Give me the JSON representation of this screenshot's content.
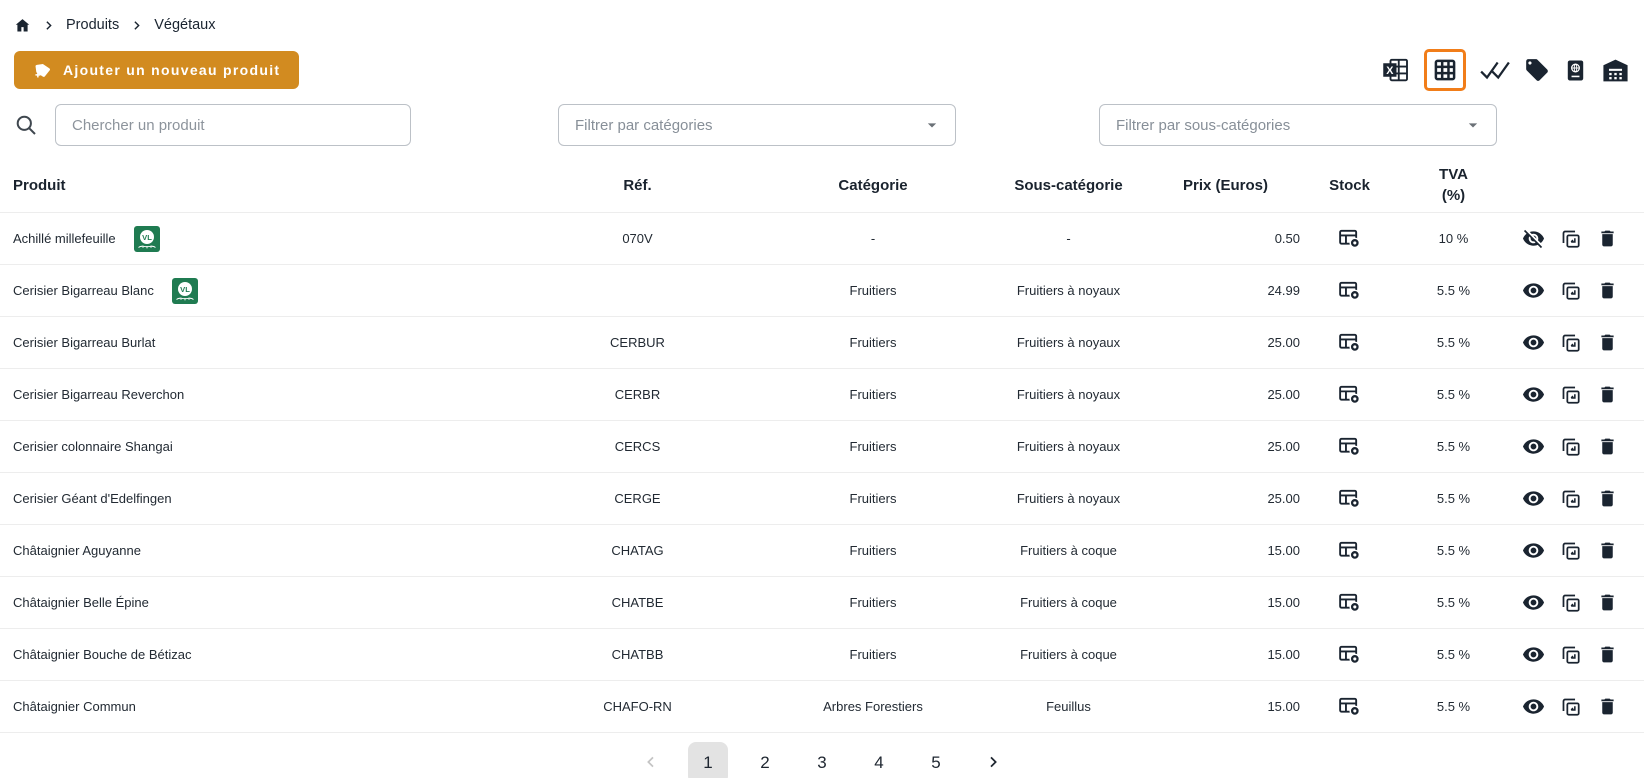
{
  "breadcrumb": {
    "items": [
      "Produits",
      "Végétaux"
    ]
  },
  "header": {
    "add_button_label": "Ajouter un nouveau produit"
  },
  "toolbar": {
    "items": [
      "excel-export",
      "table-view",
      "approve-all",
      "tags",
      "passport",
      "warehouse"
    ],
    "selected": "table-view"
  },
  "search": {
    "placeholder": "Chercher un produit"
  },
  "filters": {
    "category_placeholder": "Filtrer par catégories",
    "subcategory_placeholder": "Filtrer par sous-catégories"
  },
  "badge": {
    "label": "VL",
    "color": "#1F7B51"
  },
  "table": {
    "columns": [
      "Produit",
      "Réf.",
      "Catégorie",
      "Sous-catégorie",
      "Prix (Euros)",
      "Stock",
      "TVA (%)"
    ],
    "rows": [
      {
        "name": "Achillé millefeuille",
        "badge": true,
        "ref": "070V",
        "category": "-",
        "subcategory": "-",
        "price": "0.50",
        "tva": "10 %",
        "visible": false
      },
      {
        "name": "Cerisier Bigarreau Blanc",
        "badge": true,
        "ref": "",
        "category": "Fruitiers",
        "subcategory": "Fruitiers à noyaux",
        "price": "24.99",
        "tva": "5.5 %",
        "visible": true
      },
      {
        "name": "Cerisier Bigarreau Burlat",
        "badge": false,
        "ref": "CERBUR",
        "category": "Fruitiers",
        "subcategory": "Fruitiers à noyaux",
        "price": "25.00",
        "tva": "5.5 %",
        "visible": true
      },
      {
        "name": "Cerisier Bigarreau Reverchon",
        "badge": false,
        "ref": "CERBR",
        "category": "Fruitiers",
        "subcategory": "Fruitiers à noyaux",
        "price": "25.00",
        "tva": "5.5 %",
        "visible": true
      },
      {
        "name": "Cerisier colonnaire Shangai",
        "badge": false,
        "ref": "CERCS",
        "category": "Fruitiers",
        "subcategory": "Fruitiers à noyaux",
        "price": "25.00",
        "tva": "5.5 %",
        "visible": true
      },
      {
        "name": "Cerisier Géant d'Edelfingen",
        "badge": false,
        "ref": "CERGE",
        "category": "Fruitiers",
        "subcategory": "Fruitiers à noyaux",
        "price": "25.00",
        "tva": "5.5 %",
        "visible": true
      },
      {
        "name": "Châtaignier Aguyanne",
        "badge": false,
        "ref": "CHATAG",
        "category": "Fruitiers",
        "subcategory": "Fruitiers à coque",
        "price": "15.00",
        "tva": "5.5 %",
        "visible": true
      },
      {
        "name": "Châtaignier Belle Épine",
        "badge": false,
        "ref": "CHATBE",
        "category": "Fruitiers",
        "subcategory": "Fruitiers à coque",
        "price": "15.00",
        "tva": "5.5 %",
        "visible": true
      },
      {
        "name": "Châtaignier Bouche de Bétizac",
        "badge": false,
        "ref": "CHATBB",
        "category": "Fruitiers",
        "subcategory": "Fruitiers à coque",
        "price": "15.00",
        "tva": "5.5 %",
        "visible": true
      },
      {
        "name": "Châtaignier Commun",
        "badge": false,
        "ref": "CHAFO-RN",
        "category": "Arbres Forestiers",
        "subcategory": "Feuillus",
        "price": "15.00",
        "tva": "5.5 %",
        "visible": true
      }
    ]
  },
  "pagination": {
    "pages": [
      "1",
      "2",
      "3",
      "4",
      "5"
    ],
    "active": "1"
  },
  "colors": {
    "accent_orange": "#D28B20",
    "selected_icon_border": "#F17D19",
    "badge_green": "#1F7B51",
    "icon_dark": "#1A2430",
    "active_page_bg": "#E3E3E3"
  }
}
